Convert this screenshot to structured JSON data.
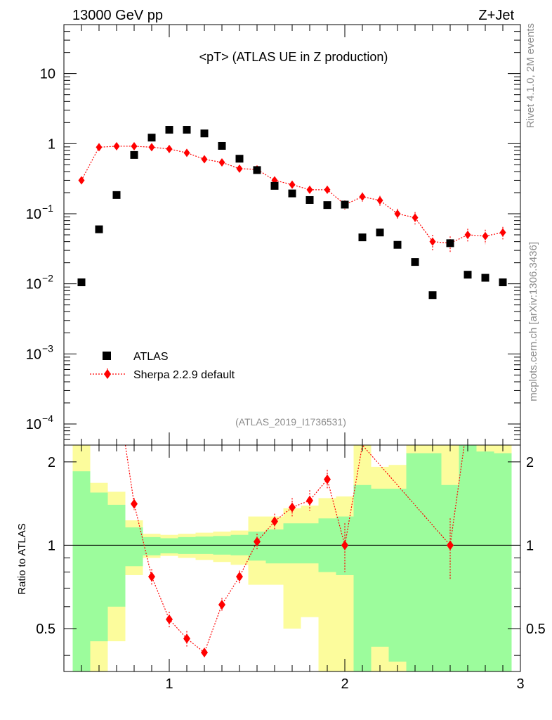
{
  "header": {
    "left": "13000 GeV pp",
    "right": "Z+Jet"
  },
  "side_labels": {
    "rivet": "Rivet 4.1.0,  2M events",
    "mcplots": "mcplots.cern.ch [arXiv:1306.3436]"
  },
  "chart_data": [
    {
      "type": "scatter",
      "panel": "main",
      "title": "<pT> (ATLAS UE in Z production)",
      "subtitle": "(ATLAS_2019_I1736531)",
      "yscale": "log",
      "xlim": [
        0.4,
        3.0
      ],
      "ylim": [
        5e-05,
        50
      ],
      "y_tick_labels": [
        {
          "value": 10,
          "base": "10",
          "exp": ""
        },
        {
          "value": 1,
          "base": "1",
          "exp": ""
        },
        {
          "value": 0.1,
          "base": "10",
          "exp": "−1"
        },
        {
          "value": 0.01,
          "base": "10",
          "exp": "−2"
        },
        {
          "value": 0.001,
          "base": "10",
          "exp": "−3"
        },
        {
          "value": 0.0001,
          "base": "10",
          "exp": "−4"
        }
      ],
      "legend_position": "bottom-left",
      "series": [
        {
          "name": "ATLAS",
          "marker": "square",
          "color": "#000000",
          "x": [
            0.5,
            0.6,
            0.7,
            0.8,
            0.9,
            1.0,
            1.1,
            1.2,
            1.3,
            1.4,
            1.5,
            1.6,
            1.7,
            1.8,
            1.9,
            2.0,
            2.1,
            2.2,
            2.3,
            2.4,
            2.5,
            2.6,
            2.7,
            2.8,
            2.9
          ],
          "y": [
            0.0105,
            0.06,
            0.185,
            0.69,
            1.22,
            1.58,
            1.58,
            1.4,
            0.93,
            0.61,
            0.42,
            0.25,
            0.195,
            0.157,
            0.133,
            0.135,
            0.046,
            0.054,
            0.036,
            0.0205,
            0.0069,
            0.038,
            0.0135,
            0.0122,
            0.0105
          ]
        },
        {
          "name": "Sherpa 2.2.9 default",
          "marker": "diamond",
          "line": "dotted",
          "color": "#ff0000",
          "x": [
            0.5,
            0.6,
            0.7,
            0.8,
            0.9,
            1.0,
            1.1,
            1.2,
            1.3,
            1.4,
            1.5,
            1.6,
            1.7,
            1.8,
            1.9,
            2.0,
            2.1,
            2.2,
            2.3,
            2.4,
            2.5,
            2.6,
            2.7,
            2.8,
            2.9
          ],
          "y": [
            0.3,
            0.89,
            0.92,
            0.92,
            0.89,
            0.84,
            0.74,
            0.6,
            0.54,
            0.44,
            0.43,
            0.3,
            0.26,
            0.22,
            0.22,
            0.135,
            0.175,
            0.155,
            0.1,
            0.088,
            0.04,
            0.038,
            0.05,
            0.048,
            0.054
          ],
          "rel_err": [
            0.08,
            0.03,
            0.03,
            0.03,
            0.03,
            0.03,
            0.04,
            0.05,
            0.06,
            0.07,
            0.08,
            0.1,
            0.1,
            0.12,
            0.13,
            0.15,
            0.15,
            0.16,
            0.18,
            0.2,
            0.25,
            0.25,
            0.22,
            0.23,
            0.2
          ]
        }
      ]
    },
    {
      "type": "line",
      "panel": "ratio",
      "ylabel": "Ratio to ATLAS",
      "xlim": [
        0.4,
        3.0
      ],
      "ylim": [
        0.35,
        2.3
      ],
      "yscale": "log",
      "x_tick_labels": [
        "1",
        "2",
        "3"
      ],
      "y_tick_labels": [
        "0.5",
        "1",
        "2"
      ],
      "reference_line": 1,
      "band_colors": {
        "inner": "#9cfc9c",
        "outer": "#fcfc9c"
      },
      "bands": [
        {
          "x0": 0.45,
          "x1": 0.55,
          "in_lo": 0.1,
          "in_hi": 1.85,
          "out_lo": 0.05,
          "out_hi": 3.0
        },
        {
          "x0": 0.55,
          "x1": 0.65,
          "in_lo": 0.45,
          "in_hi": 1.55,
          "out_lo": 0.3,
          "out_hi": 1.68
        },
        {
          "x0": 0.65,
          "x1": 0.75,
          "in_lo": 0.6,
          "in_hi": 1.4,
          "out_lo": 0.45,
          "out_hi": 1.56
        },
        {
          "x0": 0.75,
          "x1": 0.85,
          "in_lo": 0.84,
          "in_hi": 1.16,
          "out_lo": 0.78,
          "out_hi": 1.23
        },
        {
          "x0": 0.85,
          "x1": 0.95,
          "in_lo": 0.92,
          "in_hi": 1.07,
          "out_lo": 0.9,
          "out_hi": 1.1
        },
        {
          "x0": 0.95,
          "x1": 1.05,
          "in_lo": 0.935,
          "in_hi": 1.06,
          "out_lo": 0.915,
          "out_hi": 1.09
        },
        {
          "x0": 1.05,
          "x1": 1.15,
          "in_lo": 0.93,
          "in_hi": 1.07,
          "out_lo": 0.9,
          "out_hi": 1.1
        },
        {
          "x0": 1.15,
          "x1": 1.25,
          "in_lo": 0.93,
          "in_hi": 1.075,
          "out_lo": 0.885,
          "out_hi": 1.11
        },
        {
          "x0": 1.25,
          "x1": 1.35,
          "in_lo": 0.925,
          "in_hi": 1.08,
          "out_lo": 0.87,
          "out_hi": 1.12
        },
        {
          "x0": 1.35,
          "x1": 1.45,
          "in_lo": 0.92,
          "in_hi": 1.09,
          "out_lo": 0.85,
          "out_hi": 1.13
        },
        {
          "x0": 1.45,
          "x1": 1.55,
          "in_lo": 0.88,
          "in_hi": 1.12,
          "out_lo": 0.72,
          "out_hi": 1.27
        },
        {
          "x0": 1.55,
          "x1": 1.65,
          "in_lo": 0.86,
          "in_hi": 1.14,
          "out_lo": 0.72,
          "out_hi": 1.27
        },
        {
          "x0": 1.65,
          "x1": 1.75,
          "in_lo": 0.86,
          "in_hi": 1.2,
          "out_lo": 0.5,
          "out_hi": 1.36
        },
        {
          "x0": 1.75,
          "x1": 1.85,
          "in_lo": 0.86,
          "in_hi": 1.2,
          "out_lo": 0.55,
          "out_hi": 1.39
        },
        {
          "x0": 1.85,
          "x1": 1.95,
          "in_lo": 0.8,
          "in_hi": 1.25,
          "out_lo": 0.3,
          "out_hi": 1.48
        },
        {
          "x0": 1.95,
          "x1": 2.05,
          "in_lo": 0.78,
          "in_hi": 1.27,
          "out_lo": 0.3,
          "out_hi": 1.5
        },
        {
          "x0": 2.05,
          "x1": 2.15,
          "in_lo": 0.2,
          "in_hi": 1.65,
          "out_lo": 0.1,
          "out_hi": 2.3
        },
        {
          "x0": 2.15,
          "x1": 2.25,
          "in_lo": 0.43,
          "in_hi": 1.6,
          "out_lo": 0.35,
          "out_hi": 1.92
        },
        {
          "x0": 2.25,
          "x1": 2.35,
          "in_lo": 0.38,
          "in_hi": 1.6,
          "out_lo": 0.2,
          "out_hi": 1.95
        },
        {
          "x0": 2.35,
          "x1": 2.45,
          "in_lo": 0.2,
          "in_hi": 2.15,
          "out_lo": 0.1,
          "out_hi": 2.4
        },
        {
          "x0": 2.45,
          "x1": 2.55,
          "in_lo": 0.1,
          "in_hi": 2.15,
          "out_lo": 0.05,
          "out_hi": 3.0
        },
        {
          "x0": 2.55,
          "x1": 2.65,
          "in_lo": 0.2,
          "in_hi": 1.65,
          "out_lo": 0.1,
          "out_hi": 3.0
        },
        {
          "x0": 2.65,
          "x1": 2.75,
          "in_lo": 0.2,
          "in_hi": 2.3,
          "out_lo": 0.1,
          "out_hi": 3.0
        },
        {
          "x0": 2.75,
          "x1": 2.85,
          "in_lo": 0.2,
          "in_hi": 2.18,
          "out_lo": 0.1,
          "out_hi": 3.0
        },
        {
          "x0": 2.85,
          "x1": 2.95,
          "in_lo": 0.2,
          "in_hi": 2.15,
          "out_lo": 0.1,
          "out_hi": 3.0
        }
      ],
      "series": [
        {
          "name": "Sherpa 2.2.9 default / ATLAS",
          "color": "#ff0000",
          "x": [
            0.75,
            0.8,
            0.9,
            1.0,
            1.1,
            1.2,
            1.3,
            1.4,
            1.5,
            1.6,
            1.7,
            1.8,
            1.9,
            2.0,
            2.1,
            2.6,
            2.68
          ],
          "y": [
            2.3,
            1.41,
            0.77,
            0.54,
            0.46,
            0.41,
            0.61,
            0.77,
            1.03,
            1.22,
            1.37,
            1.45,
            1.73,
            1.0,
            2.3,
            1.0,
            2.3
          ],
          "show_marker": [
            false,
            true,
            true,
            true,
            true,
            true,
            true,
            true,
            true,
            true,
            true,
            true,
            true,
            true,
            false,
            true,
            false
          ],
          "err_lo": [
            0,
            1.34,
            0.72,
            0.505,
            0.43,
            0.395,
            0.575,
            0.73,
            0.96,
            1.14,
            1.26,
            1.33,
            1.59,
            0.8,
            0,
            0.75,
            0
          ],
          "err_hi": [
            0,
            1.48,
            0.82,
            0.575,
            0.49,
            0.425,
            0.645,
            0.81,
            1.1,
            1.3,
            1.48,
            1.58,
            1.87,
            1.2,
            0,
            1.25,
            0
          ]
        }
      ]
    }
  ]
}
